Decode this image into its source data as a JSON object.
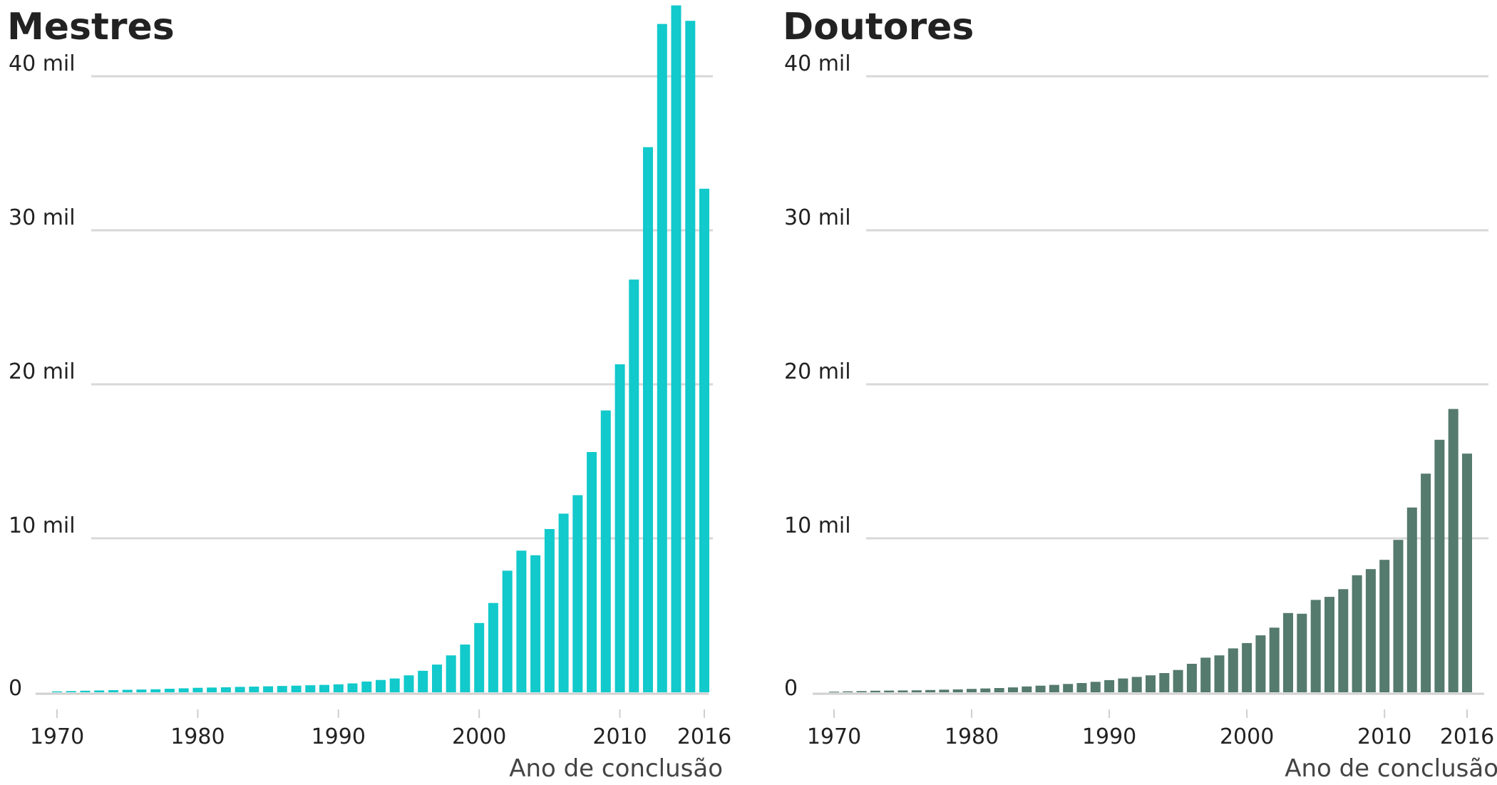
{
  "chart_data": [
    {
      "type": "bar",
      "title": "Mestres",
      "xlabel": "Ano de conclusão",
      "ylabel": "",
      "ylim": [
        0,
        44000
      ],
      "y_ticks": [
        0,
        10000,
        20000,
        30000,
        40000
      ],
      "y_tick_labels": [
        "0",
        "10 mil",
        "20 mil",
        "30 mil",
        "40 mil"
      ],
      "x_ticks": [
        1970,
        1980,
        1990,
        2000,
        2010,
        2016
      ],
      "x_tick_labels": [
        "1970",
        "1980",
        "1990",
        "2000",
        "2010",
        "2016"
      ],
      "grid": true,
      "color": "#12C9CB",
      "categories": [
        1970,
        1971,
        1972,
        1973,
        1974,
        1975,
        1976,
        1977,
        1978,
        1979,
        1980,
        1981,
        1982,
        1983,
        1984,
        1985,
        1986,
        1987,
        1988,
        1989,
        1990,
        1991,
        1992,
        1993,
        1994,
        1995,
        1996,
        1997,
        1998,
        1999,
        2000,
        2001,
        2002,
        2003,
        2004,
        2005,
        2006,
        2007,
        2008,
        2009,
        2010,
        2011,
        2012,
        2013,
        2014,
        2015,
        2016
      ],
      "values": [
        60,
        80,
        100,
        120,
        140,
        160,
        180,
        200,
        230,
        260,
        290,
        310,
        330,
        350,
        370,
        390,
        410,
        430,
        460,
        480,
        520,
        580,
        700,
        800,
        900,
        1100,
        1400,
        1800,
        2400,
        3100,
        4500,
        5800,
        7900,
        9200,
        8900,
        10600,
        11600,
        12800,
        15600,
        18300,
        21300,
        26800,
        35400,
        43400,
        44600,
        43600,
        32700
      ]
    },
    {
      "type": "bar",
      "title": "Doutores",
      "xlabel": "Ano de conclusão",
      "ylabel": "",
      "ylim": [
        0,
        44000
      ],
      "y_ticks": [
        0,
        10000,
        20000,
        30000,
        40000
      ],
      "y_tick_labels": [
        "0",
        "10 mil",
        "20 mil",
        "30 mil",
        "40 mil"
      ],
      "x_ticks": [
        1970,
        1980,
        1990,
        2000,
        2010,
        2016
      ],
      "x_tick_labels": [
        "1970",
        "1980",
        "1990",
        "2000",
        "2010",
        "2016"
      ],
      "grid": true,
      "color": "#557A6E",
      "categories": [
        1970,
        1971,
        1972,
        1973,
        1974,
        1975,
        1976,
        1977,
        1978,
        1979,
        1980,
        1981,
        1982,
        1983,
        1984,
        1985,
        1986,
        1987,
        1988,
        1989,
        1990,
        1991,
        1992,
        1993,
        1994,
        1995,
        1996,
        1997,
        1998,
        1999,
        2000,
        2001,
        2002,
        2003,
        2004,
        2005,
        2006,
        2007,
        2008,
        2009,
        2010,
        2011,
        2012,
        2013,
        2014,
        2015,
        2016
      ],
      "values": [
        40,
        60,
        80,
        100,
        110,
        120,
        130,
        150,
        170,
        190,
        220,
        250,
        280,
        320,
        380,
        430,
        480,
        540,
        600,
        680,
        790,
        900,
        1000,
        1100,
        1250,
        1450,
        1850,
        2250,
        2400,
        2850,
        3200,
        3700,
        4200,
        5150,
        5100,
        6000,
        6200,
        6700,
        7600,
        8000,
        8600,
        9900,
        12000,
        14200,
        16400,
        18400,
        15500
      ]
    }
  ]
}
